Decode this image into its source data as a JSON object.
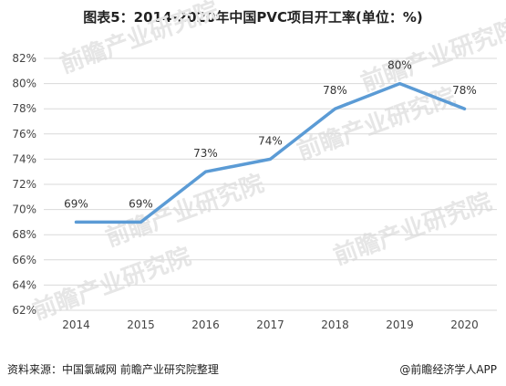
{
  "title": "图表5：2014-2020年中国PVC项目开工率(单位：%)",
  "watermark": "前瞻产业研究院",
  "footer": {
    "source": "资料来源：中国氯碱网 前瞻产业研究院整理",
    "brand": "@前瞻经济学人APP"
  },
  "colors": {
    "line": "#5b9bd5",
    "grid": "#d9d9d9",
    "watermark": "#e6e6e6"
  },
  "chart_data": {
    "type": "line",
    "title": "图表5：2014-2020年中国PVC项目开工率(单位：%)",
    "categories": [
      "2014",
      "2015",
      "2016",
      "2017",
      "2018",
      "2019",
      "2020"
    ],
    "series": [
      {
        "values": [
          69,
          69,
          73,
          74,
          78,
          80,
          78
        ],
        "data_labels": [
          "69%",
          "69%",
          "73%",
          "74%",
          "78%",
          "80%",
          "78%"
        ]
      }
    ],
    "y_ticks": [
      "62%",
      "64%",
      "66%",
      "68%",
      "70%",
      "72%",
      "74%",
      "76%",
      "78%",
      "80%",
      "82%"
    ],
    "ylim": [
      62,
      82
    ],
    "xlabel": "",
    "ylabel": "",
    "grid": "horizontal"
  }
}
